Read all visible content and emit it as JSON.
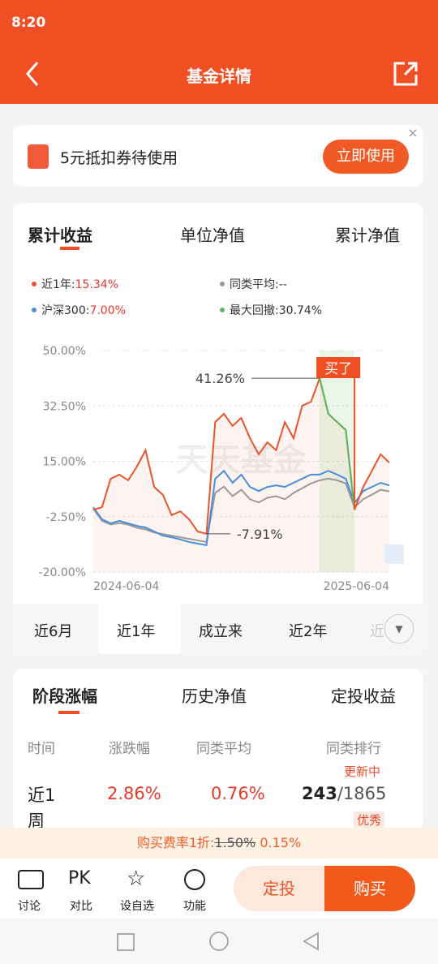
{
  "status_bar": {
    "time": "8:20"
  },
  "header": {
    "title": "基金详情"
  },
  "coupon": {
    "text": "5元抵扣券待使用",
    "button": "立即使用"
  },
  "chart_tabs": [
    "累计收益",
    "单位净值",
    "累计净值"
  ],
  "chart_data": {
    "type": "line",
    "watermark": "天天基金",
    "categories": [
      "2024-06-04",
      null,
      null,
      null,
      null,
      null,
      null,
      null,
      null,
      null,
      null,
      null,
      null,
      null,
      null,
      null,
      null,
      null,
      null,
      null,
      null,
      null,
      null,
      null,
      null,
      null,
      null,
      null,
      null,
      null,
      null,
      null,
      null,
      null,
      "2025-06-04"
    ],
    "series": [
      {
        "name": "近1年:",
        "legend_value": "15.34%",
        "color": "#e8542b",
        "values": [
          -0.3,
          0.5,
          9.5,
          10.8,
          9,
          13.3,
          18.5,
          6.9,
          4.4,
          -2,
          -0.8,
          -3.3,
          -7.2,
          -7.91,
          27.4,
          30,
          26.2,
          28.7,
          22.3,
          17.2,
          21,
          18.5,
          27.4,
          22.3,
          32.6,
          33.8,
          41.26,
          30,
          27.4,
          24.9,
          -0.3,
          6.9,
          12,
          17.2,
          14.6
        ]
      },
      {
        "name": "沪深300:",
        "legend_value": "7.00%",
        "color": "#4a8fd8",
        "values": [
          0.5,
          -3.3,
          -4.6,
          -3.8,
          -4.6,
          -5.4,
          -5.9,
          -7.2,
          -8.5,
          -9,
          -9.7,
          -10.5,
          -11,
          -11.5,
          9.5,
          12,
          8.2,
          10.8,
          6.9,
          5.6,
          6.9,
          7.4,
          6.9,
          8.2,
          9.5,
          10.8,
          10.8,
          12,
          10.8,
          9.5,
          1.8,
          5.6,
          6.9,
          8.2,
          7.4
        ]
      },
      {
        "name": "同类平均:",
        "legend_value": "--",
        "color": "#9a9a9a",
        "values": [
          0,
          -3.8,
          -5,
          -4.5,
          -5,
          -6,
          -6.5,
          -7.5,
          -8,
          -8.5,
          -9,
          -9.5,
          -10,
          -10.5,
          5,
          7,
          4,
          6,
          3,
          2,
          3.5,
          4,
          3,
          5,
          6.5,
          8,
          9,
          9.5,
          9,
          8,
          0.5,
          3,
          4.5,
          6,
          5.5
        ]
      }
    ],
    "drawdown": {
      "name": "最大回撤:",
      "value": "30.74%",
      "color": "#5cb85c"
    },
    "ylim": [
      -20,
      50
    ],
    "yticks": [
      {
        "value": 50,
        "label": "50.00%"
      },
      {
        "value": 32.5,
        "label": "32.50%"
      },
      {
        "value": 15,
        "label": "15.00%"
      },
      {
        "value": -2.5,
        "label": "-2.50%"
      },
      {
        "value": -20,
        "label": "-20.00%"
      }
    ],
    "annotations": [
      {
        "value": 41.26,
        "label": "41.26%"
      },
      {
        "value": -7.91,
        "label": "-7.91%"
      }
    ],
    "buy_label": "买了"
  },
  "period_tabs": [
    "近6月",
    "近1年",
    "成立来",
    "近2年",
    "近"
  ],
  "stage": {
    "tabs": [
      "阶段涨幅",
      "历史净值",
      "定投收益"
    ],
    "columns": [
      "时间",
      "涨跌幅",
      "同类平均",
      "同类排行"
    ],
    "status": "更新中",
    "row": {
      "period": "近1周",
      "change": "2.86%",
      "average": "0.76%",
      "rank": "243",
      "rank_total": "/1865",
      "badge": "优秀"
    }
  },
  "fee_bar": {
    "label": "购买费率1折:",
    "original": "1.50%",
    "discounted": "0.15%"
  },
  "bottom_bar": {
    "icons": [
      {
        "label": "讨论"
      },
      {
        "glyph": "PK",
        "label": "对比"
      },
      {
        "label": "设自选"
      },
      {
        "label": "功能"
      }
    ],
    "secondary": "定投",
    "primary": "购买"
  }
}
